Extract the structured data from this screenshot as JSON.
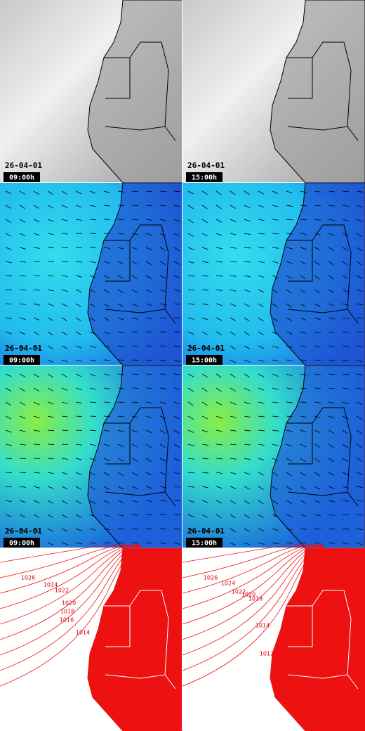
{
  "rows": [
    {
      "panels": [
        {
          "date": "26-04-01",
          "time": "09:00h"
        },
        {
          "date": "26-04-01",
          "time": "15:00h"
        }
      ]
    },
    {
      "panels": [
        {
          "date": "26-04-01",
          "time": "09:00h"
        },
        {
          "date": "26-04-01",
          "time": "15:00h"
        }
      ]
    },
    {
      "panels": [
        {
          "date": "26-04-01",
          "time": "09:00h"
        },
        {
          "date": "26-04-01",
          "time": "15:00h"
        }
      ]
    }
  ],
  "pressure_row": {
    "panels": [
      {
        "labels": [
          "1026",
          "1024",
          "1022",
          "1020",
          "1018",
          "1016",
          "1014"
        ]
      },
      {
        "labels": [
          "1026",
          "1024",
          "1022",
          "1020",
          "1018",
          "1014",
          "1012"
        ]
      }
    ]
  }
}
